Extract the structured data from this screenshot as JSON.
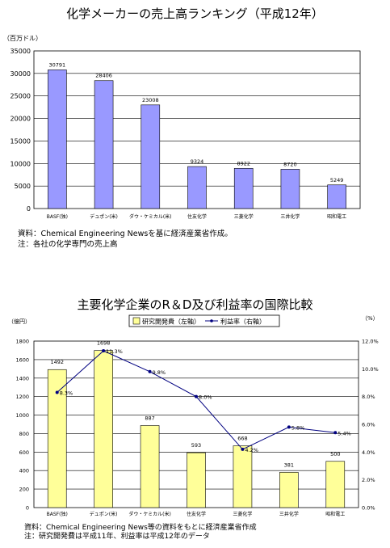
{
  "chart_data": [
    {
      "type": "bar",
      "title": "化学メーカーの売上高ランキング（平成12年）",
      "ylabel": "（百万ドル）",
      "ylim": [
        0,
        35000
      ],
      "yticks": [
        "0",
        "5000",
        "10000",
        "15000",
        "20000",
        "25000",
        "30000",
        "35000"
      ],
      "categories": [
        "BASF(独)",
        "デュポン(米)",
        "ダウ・ケミカル(米)",
        "住友化学",
        "三菱化学",
        "三井化学",
        "昭和電工"
      ],
      "values": [
        30791,
        28406,
        23008,
        9324,
        8922,
        8720,
        5249
      ],
      "value_labels": [
        "30791",
        "28406",
        "23008",
        "9324",
        "8922",
        "8720",
        "5249"
      ],
      "colors": {
        "bar": "#9999ff",
        "bar_border": "#000000"
      },
      "grid": true,
      "notes": [
        "資料：Chemical Engineering Newsを基に経済産業省作成。",
        "注：各社の化学専門の売上高"
      ]
    },
    {
      "type": "bar+line",
      "title": "主要化学企業のR＆D及び利益率の国際比較",
      "ylabel_left": "（億円）",
      "ylabel_right": "（%）",
      "ylim_left": [
        0,
        1800
      ],
      "ylim_right": [
        0,
        12
      ],
      "yticks_left": [
        "0",
        "200",
        "400",
        "600",
        "800",
        "1000",
        "1200",
        "1400",
        "1600",
        "1800"
      ],
      "yticks_right": [
        "0.0%",
        "2.0%",
        "4.0%",
        "6.0%",
        "8.0%",
        "10.0%",
        "12.0%"
      ],
      "categories": [
        "BASF(独)",
        "デュポン(米)",
        "ダウ・ケミカル(米)",
        "住友化学",
        "三菱化学",
        "三井化学",
        "昭和電工"
      ],
      "series": [
        {
          "name": "研究開発費（左軸）",
          "type": "bar",
          "axis": "left",
          "values": [
            1492,
            1698,
            887,
            593,
            668,
            381,
            500
          ],
          "labels": [
            "1492",
            "1698",
            "887",
            "593",
            "668",
            "381",
            "500"
          ]
        },
        {
          "name": "利益率（右軸）",
          "type": "line",
          "axis": "right",
          "values": [
            8.3,
            11.3,
            9.8,
            8.0,
            4.2,
            5.8,
            5.4
          ],
          "labels": [
            "8.3%",
            "11.3%",
            "9.8%",
            "8.0%",
            "4.2%",
            "5.8%",
            "5.4%"
          ]
        }
      ],
      "legend_position": "top",
      "colors": {
        "bar": "#ffff99",
        "bar_border": "#000000",
        "line": "#000080"
      },
      "grid": true,
      "notes": [
        "資料：Chemical Engineering News等の資料をもとに経済産業省作成",
        "注：研究開発費は平成11年、利益率は平成12年のデータ"
      ]
    }
  ]
}
